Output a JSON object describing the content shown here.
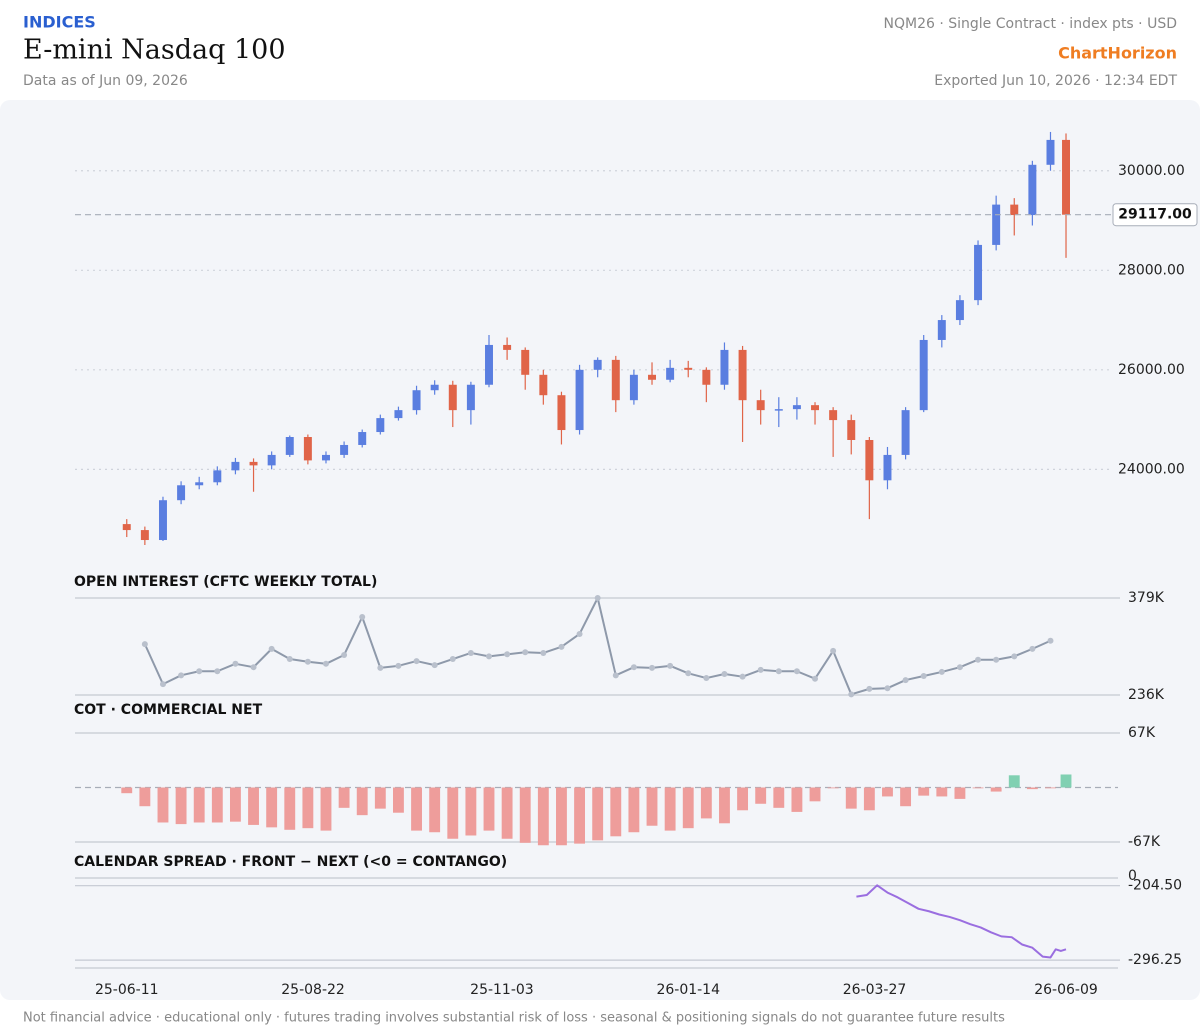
{
  "header": {
    "category": "INDICES",
    "title": "E-mini Nasdaq 100",
    "as_of": "Data as of Jun 09, 2026",
    "meta": "NQM26 · Single Contract · index pts · USD",
    "brand": "ChartHorizon",
    "exported": "Exported Jun 10, 2026 · 12:34 EDT"
  },
  "footer": "Not financial advice · educational only · futures trading involves substantial risk of loss · seasonal & positioning signals do not guarantee future results",
  "chart_data": [
    {
      "type": "candlestick",
      "x": [
        "25-06-11",
        "25-06-18",
        "25-06-25",
        "25-07-02",
        "25-07-09",
        "25-07-16",
        "25-07-23",
        "25-07-30",
        "25-08-06",
        "25-08-13",
        "25-08-20",
        "25-08-27",
        "25-09-03",
        "25-09-10",
        "25-09-17",
        "25-09-24",
        "25-10-01",
        "25-10-08",
        "25-10-15",
        "25-10-22",
        "25-10-29",
        "25-11-05",
        "25-11-12",
        "25-11-19",
        "25-11-26",
        "25-12-03",
        "25-12-10",
        "25-12-17",
        "25-12-24",
        "25-12-31",
        "26-01-07",
        "26-01-14",
        "26-01-21",
        "26-01-28",
        "26-02-04",
        "26-02-11",
        "26-02-18",
        "26-02-25",
        "26-03-04",
        "26-03-11",
        "26-03-18",
        "26-03-25",
        "26-04-01",
        "26-04-08",
        "26-04-15",
        "26-04-22",
        "26-04-29",
        "26-05-06",
        "26-05-13",
        "26-05-20",
        "26-05-27",
        "26-06-03",
        "26-06-09"
      ],
      "ohlc": [
        [
          22900,
          23000,
          22640,
          22780
        ],
        [
          22780,
          22850,
          22480,
          22580
        ],
        [
          22580,
          23450,
          22560,
          23380
        ],
        [
          23380,
          23760,
          23300,
          23680
        ],
        [
          23680,
          23850,
          23600,
          23740
        ],
        [
          23740,
          24060,
          23680,
          23980
        ],
        [
          23980,
          24230,
          23900,
          24150
        ],
        [
          24150,
          24220,
          23550,
          24080
        ],
        [
          24080,
          24360,
          24000,
          24290
        ],
        [
          24290,
          24680,
          24250,
          24650
        ],
        [
          24650,
          24700,
          24100,
          24180
        ],
        [
          24180,
          24360,
          24120,
          24290
        ],
        [
          24290,
          24560,
          24230,
          24490
        ],
        [
          24490,
          24800,
          24440,
          24750
        ],
        [
          24750,
          25100,
          24700,
          25030
        ],
        [
          25030,
          25260,
          24980,
          25190
        ],
        [
          25190,
          25680,
          25100,
          25590
        ],
        [
          25590,
          25790,
          25500,
          25700
        ],
        [
          25700,
          25780,
          24850,
          25190
        ],
        [
          25190,
          25760,
          24900,
          25700
        ],
        [
          25700,
          26700,
          25650,
          26500
        ],
        [
          26500,
          26650,
          26200,
          26400
        ],
        [
          26400,
          26450,
          25600,
          25900
        ],
        [
          25900,
          26000,
          25300,
          25490
        ],
        [
          25490,
          25560,
          24500,
          24790
        ],
        [
          24790,
          26100,
          24700,
          26000
        ],
        [
          26000,
          26250,
          25850,
          26200
        ],
        [
          26200,
          26280,
          25150,
          25390
        ],
        [
          25390,
          26000,
          25300,
          25900
        ],
        [
          25900,
          26150,
          25700,
          25800
        ],
        [
          25800,
          26200,
          25750,
          26040
        ],
        [
          26040,
          26180,
          25850,
          26000
        ],
        [
          26000,
          26050,
          25350,
          25700
        ],
        [
          25700,
          26550,
          25600,
          26400
        ],
        [
          26400,
          26480,
          24550,
          25390
        ],
        [
          25390,
          25600,
          24900,
          25190
        ],
        [
          25190,
          25450,
          24850,
          25210
        ],
        [
          25210,
          25450,
          25000,
          25290
        ],
        [
          25290,
          25350,
          24900,
          25190
        ],
        [
          25190,
          25250,
          24250,
          24990
        ],
        [
          24990,
          25100,
          24300,
          24590
        ],
        [
          24590,
          24650,
          23000,
          23780
        ],
        [
          23780,
          24450,
          23600,
          24290
        ],
        [
          24290,
          25250,
          24200,
          25190
        ],
        [
          25190,
          26700,
          25150,
          26600
        ],
        [
          26600,
          27100,
          26450,
          27000
        ],
        [
          27000,
          27500,
          26900,
          27400
        ],
        [
          27400,
          28600,
          27300,
          28510
        ],
        [
          28510,
          29500,
          28400,
          29320
        ],
        [
          29320,
          29450,
          28700,
          29110
        ],
        [
          29110,
          30200,
          28900,
          30120
        ],
        [
          30120,
          30780,
          30000,
          30620
        ],
        [
          30620,
          30750,
          28250,
          29117
        ]
      ],
      "up_color": "#5a7ee0",
      "down_color": "#e06448",
      "xlim": [
        "25-05-22",
        "26-06-26"
      ],
      "xticks": [
        "25-06-11",
        "25-08-22",
        "25-11-03",
        "26-01-14",
        "26-03-27",
        "26-06-09"
      ],
      "ylim": [
        22500,
        31000
      ],
      "yticks": [
        {
          "value": 24000,
          "label": "24000.00"
        },
        {
          "value": 26000,
          "label": "26000.00"
        },
        {
          "value": 28000,
          "label": "28000.00"
        },
        {
          "value": 30000,
          "label": "30000.00"
        }
      ],
      "last_price": {
        "value": 29117,
        "label": "29117.00"
      },
      "grid": true
    },
    {
      "type": "line",
      "title": "OPEN INTEREST (CFTC WEEKLY TOTAL)",
      "color": "#8e99aa",
      "markers": true,
      "values": [
        null,
        311000,
        252000,
        265000,
        271000,
        271000,
        282000,
        277000,
        304000,
        289000,
        285000,
        282000,
        295000,
        351000,
        276000,
        279000,
        286000,
        280000,
        289000,
        298000,
        293000,
        296000,
        299000,
        298000,
        307000,
        326000,
        379000,
        265000,
        277000,
        276000,
        279000,
        268000,
        261000,
        267000,
        263000,
        273000,
        271000,
        271000,
        260000,
        301000,
        237000,
        245000,
        246000,
        258000,
        264000,
        270000,
        277000,
        288000,
        288000,
        293000,
        304000,
        316000,
        null
      ],
      "ylim": [
        236000,
        379000
      ],
      "yticks": [
        {
          "value": 379000,
          "label": "379K"
        },
        {
          "value": 236000,
          "label": "236K"
        }
      ]
    },
    {
      "type": "bar",
      "title": "COT · COMMERCIAL NET",
      "color_negative": "#ee9d9b",
      "color_positive": "#80d0b2",
      "values": [
        -7000,
        -23000,
        -43000,
        -45000,
        -43000,
        -43000,
        -42000,
        -46000,
        -49000,
        -52000,
        -50000,
        -53000,
        -25000,
        -34000,
        -26000,
        -31000,
        -53000,
        -55000,
        -63000,
        -59000,
        -53000,
        -63000,
        -68000,
        -71000,
        -71000,
        -69000,
        -65000,
        -60000,
        -55000,
        -47000,
        -53000,
        -50000,
        -38000,
        -44000,
        -28000,
        -20000,
        -25000,
        -30000,
        -17000,
        -1000,
        -26000,
        -28000,
        -11000,
        -23000,
        -10000,
        -11000,
        -14000,
        -1000,
        -5000,
        15000,
        -2000,
        -1000,
        16000
      ],
      "ylim": [
        -67000,
        67000
      ],
      "yticks": [
        {
          "value": 67000,
          "label": "67K"
        },
        {
          "value": -67000,
          "label": "-67K"
        }
      ]
    },
    {
      "type": "line",
      "title": "CALENDAR SPREAD · FRONT − NEXT (<0 = CONTANGO)",
      "color": "#9a6ee0",
      "markers": false,
      "top_label": "0",
      "x": [
        "26-03-20",
        "26-03-24",
        "26-03-28",
        "26-04-01",
        "26-04-05",
        "26-04-09",
        "26-04-13",
        "26-04-17",
        "26-04-21",
        "26-04-25",
        "26-04-29",
        "26-05-03",
        "26-05-07",
        "26-05-11",
        "26-05-15",
        "26-05-19",
        "26-05-23",
        "26-05-27",
        "26-05-31",
        "26-06-03",
        "26-06-05",
        "26-06-07",
        "26-06-09"
      ],
      "values": [
        -218,
        -216,
        -204,
        -213,
        -219,
        -226,
        -233,
        -236,
        -240,
        -243,
        -247,
        -252,
        -256,
        -262,
        -267,
        -268,
        -277,
        -281,
        -292,
        -293,
        -283,
        -285,
        -283
      ],
      "ylim": [
        -306,
        -195
      ],
      "yticks": [
        {
          "value": -204.5,
          "label": "-204.50"
        },
        {
          "value": -296.25,
          "label": "-296.25"
        }
      ]
    }
  ]
}
